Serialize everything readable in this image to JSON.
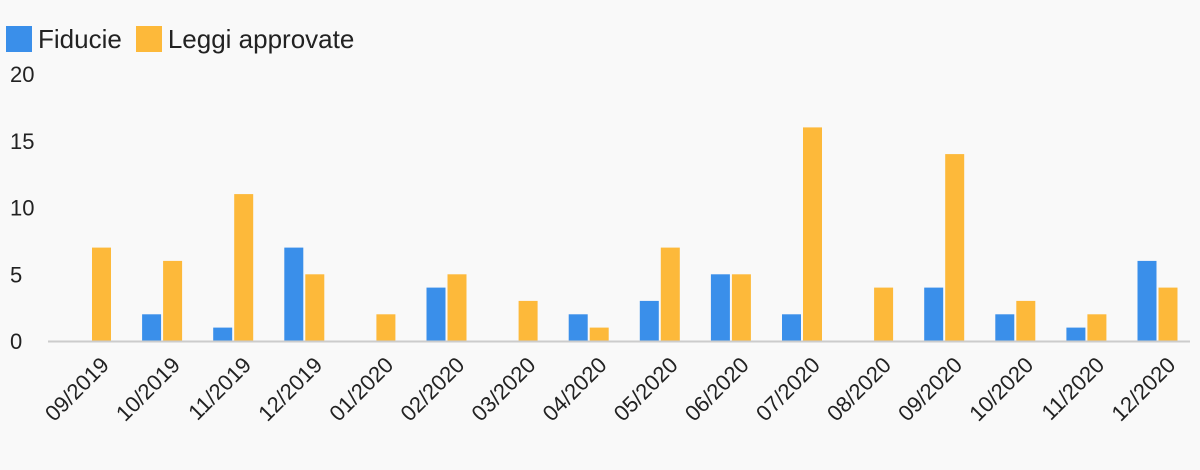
{
  "chart_data": {
    "type": "bar",
    "categories": [
      "09/2019",
      "10/2019",
      "11/2019",
      "12/2019",
      "01/2020",
      "02/2020",
      "03/2020",
      "04/2020",
      "05/2020",
      "06/2020",
      "07/2020",
      "08/2020",
      "09/2020",
      "10/2020",
      "11/2020",
      "12/2020"
    ],
    "series": [
      {
        "name": "Fiducie",
        "color": "#3a8fea",
        "values": [
          0,
          2,
          1,
          7,
          0,
          4,
          0,
          2,
          3,
          5,
          2,
          0,
          4,
          2,
          1,
          6
        ]
      },
      {
        "name": "Leggi approvate",
        "color": "#fdb93a",
        "values": [
          7,
          6,
          11,
          5,
          2,
          5,
          3,
          1,
          7,
          5,
          16,
          4,
          14,
          3,
          2,
          4
        ]
      }
    ],
    "yticks": [
      "0",
      "5",
      "10",
      "15",
      "20"
    ],
    "ylim": [
      0,
      20
    ],
    "title": "",
    "xlabel": "",
    "ylabel": "",
    "legend": "top-left",
    "grid": false
  }
}
